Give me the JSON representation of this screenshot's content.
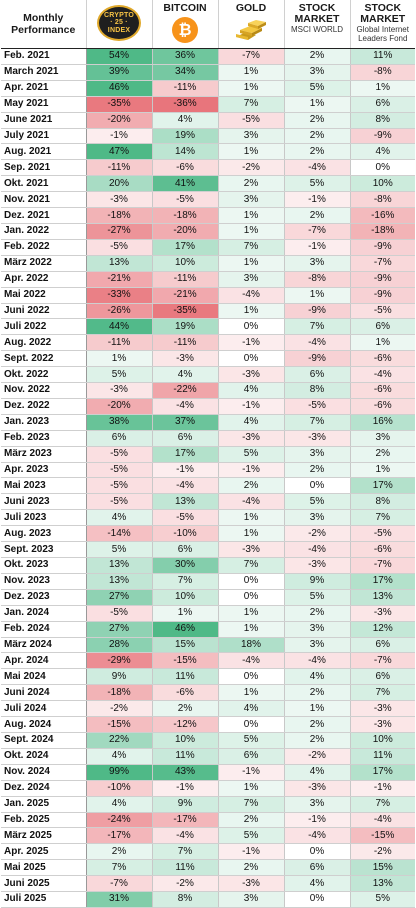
{
  "chart_data": {
    "type": "table",
    "title": "",
    "row_header_label": "Monthly Performance",
    "columns": [
      {
        "name": "CRYPTO 25 INDEX",
        "logo": "crypto25-logo-icon",
        "subtitle": ""
      },
      {
        "name": "BITCOIN",
        "logo": "bitcoin-icon",
        "subtitle": ""
      },
      {
        "name": "GOLD",
        "logo": "gold-bars-icon",
        "subtitle": ""
      },
      {
        "name": "STOCK MARKET",
        "logo": "",
        "subtitle": "MSCI WORLD"
      },
      {
        "name": "STOCK MARKET",
        "logo": "",
        "subtitle": "Global Internet Leaders Fond"
      }
    ],
    "rows": [
      {
        "month": "Feb. 2021",
        "values": [
          54,
          36,
          -7,
          2,
          11
        ]
      },
      {
        "month": "March 2021",
        "values": [
          39,
          34,
          1,
          3,
          -8
        ]
      },
      {
        "month": "Apr. 2021",
        "values": [
          46,
          -11,
          1,
          5,
          1
        ]
      },
      {
        "month": "May 2021",
        "values": [
          -35,
          -36,
          7,
          1,
          6
        ]
      },
      {
        "month": "June 2021",
        "values": [
          -20,
          4,
          -5,
          2,
          8
        ]
      },
      {
        "month": "July 2021",
        "values": [
          -1,
          19,
          3,
          2,
          -9
        ]
      },
      {
        "month": "Aug. 2021",
        "values": [
          47,
          14,
          1,
          2,
          4
        ]
      },
      {
        "month": "Sep. 2021",
        "values": [
          -11,
          -6,
          -2,
          -4,
          0
        ]
      },
      {
        "month": "Okt. 2021",
        "values": [
          20,
          41,
          2,
          5,
          10
        ]
      },
      {
        "month": "Nov. 2021",
        "values": [
          -3,
          -5,
          3,
          -1,
          -8
        ]
      },
      {
        "month": "Dez. 2021",
        "values": [
          -18,
          -18,
          1,
          2,
          -16
        ]
      },
      {
        "month": "Jan. 2022",
        "values": [
          -27,
          -20,
          1,
          -7,
          -18
        ]
      },
      {
        "month": "Feb. 2022",
        "values": [
          -5,
          17,
          7,
          -1,
          -9
        ]
      },
      {
        "month": "März 2022",
        "values": [
          13,
          10,
          1,
          3,
          -7
        ]
      },
      {
        "month": "Apr. 2022",
        "values": [
          -21,
          -11,
          3,
          -8,
          -9
        ]
      },
      {
        "month": "Mai 2022",
        "values": [
          -33,
          -21,
          -4,
          1,
          -9
        ]
      },
      {
        "month": "Juni 2022",
        "values": [
          -26,
          -35,
          1,
          -9,
          -5
        ]
      },
      {
        "month": "Juli 2022",
        "values": [
          44,
          19,
          0,
          7,
          6
        ]
      },
      {
        "month": "Aug. 2022",
        "values": [
          -11,
          -11,
          -1,
          -4,
          1
        ]
      },
      {
        "month": "Sept. 2022",
        "values": [
          1,
          -3,
          0,
          -9,
          -6
        ]
      },
      {
        "month": "Okt. 2022",
        "values": [
          5,
          4,
          -3,
          6,
          -4
        ]
      },
      {
        "month": "Nov. 2022",
        "values": [
          -3,
          -22,
          4,
          8,
          -6
        ]
      },
      {
        "month": "Dez. 2022",
        "values": [
          -20,
          -4,
          -1,
          -5,
          -6
        ]
      },
      {
        "month": "Jan. 2023",
        "values": [
          38,
          37,
          4,
          7,
          16
        ]
      },
      {
        "month": "Feb. 2023",
        "values": [
          6,
          6,
          -3,
          -3,
          3
        ]
      },
      {
        "month": "März 2023",
        "values": [
          -5,
          17,
          5,
          3,
          2
        ]
      },
      {
        "month": "Apr. 2023",
        "values": [
          -5,
          -1,
          -1,
          2,
          1
        ]
      },
      {
        "month": "Mai 2023",
        "values": [
          -5,
          -4,
          2,
          0,
          17
        ]
      },
      {
        "month": "Juni 2023",
        "values": [
          -5,
          13,
          -4,
          5,
          8
        ]
      },
      {
        "month": "Juli 2023",
        "values": [
          4,
          -5,
          1,
          3,
          7
        ]
      },
      {
        "month": "Aug. 2023",
        "values": [
          -14,
          -10,
          1,
          -2,
          -5
        ]
      },
      {
        "month": "Sept. 2023",
        "values": [
          5,
          6,
          -3,
          -4,
          -6
        ]
      },
      {
        "month": "Okt. 2023",
        "values": [
          13,
          30,
          7,
          -3,
          -7
        ]
      },
      {
        "month": "Nov. 2023",
        "values": [
          13,
          7,
          0,
          9,
          17
        ]
      },
      {
        "month": "Dez. 2023",
        "values": [
          27,
          10,
          0,
          5,
          13
        ]
      },
      {
        "month": "Jan. 2024",
        "values": [
          -5,
          1,
          1,
          2,
          -3
        ]
      },
      {
        "month": "Feb. 2024",
        "values": [
          27,
          46,
          1,
          3,
          12
        ]
      },
      {
        "month": "März 2024",
        "values": [
          28,
          15,
          18,
          3,
          6
        ]
      },
      {
        "month": "Apr. 2024",
        "values": [
          -29,
          -15,
          -4,
          -4,
          -7
        ]
      },
      {
        "month": "Mai 2024",
        "values": [
          9,
          11,
          0,
          4,
          6
        ]
      },
      {
        "month": "Juni 2024",
        "values": [
          -18,
          -6,
          1,
          2,
          7
        ]
      },
      {
        "month": "Juli 2024",
        "values": [
          -2,
          2,
          4,
          1,
          -3
        ]
      },
      {
        "month": "Aug. 2024",
        "values": [
          -15,
          -12,
          0,
          2,
          -3
        ]
      },
      {
        "month": "Sept. 2024",
        "values": [
          22,
          10,
          5,
          2,
          10
        ]
      },
      {
        "month": "Okt. 2024",
        "values": [
          4,
          11,
          6,
          -2,
          11
        ]
      },
      {
        "month": "Nov. 2024",
        "values": [
          99,
          43,
          -1,
          4,
          17
        ]
      },
      {
        "month": "Dez. 2024",
        "values": [
          -10,
          -1,
          1,
          -3,
          -1
        ]
      },
      {
        "month": "Jan. 2025",
        "values": [
          4,
          9,
          7,
          3,
          7
        ]
      },
      {
        "month": "Feb. 2025",
        "values": [
          -24,
          -17,
          2,
          -1,
          -4
        ]
      },
      {
        "month": "März 2025",
        "values": [
          -17,
          -4,
          5,
          -4,
          -15
        ]
      },
      {
        "month": "Apr. 2025",
        "values": [
          2,
          7,
          -1,
          0,
          -2
        ]
      },
      {
        "month": "Mai 2025",
        "values": [
          7,
          11,
          2,
          6,
          15
        ]
      },
      {
        "month": "Juni 2025",
        "values": [
          -7,
          -2,
          -3,
          4,
          13
        ]
      },
      {
        "month": "Juli 2025",
        "values": [
          31,
          8,
          3,
          0,
          5
        ]
      }
    ],
    "value_suffix": "%",
    "colors": {
      "positive_max": "#3bb17a",
      "negative_max": "#e0444d",
      "neutral": "#ffffff",
      "header_rule": "#222222"
    }
  }
}
